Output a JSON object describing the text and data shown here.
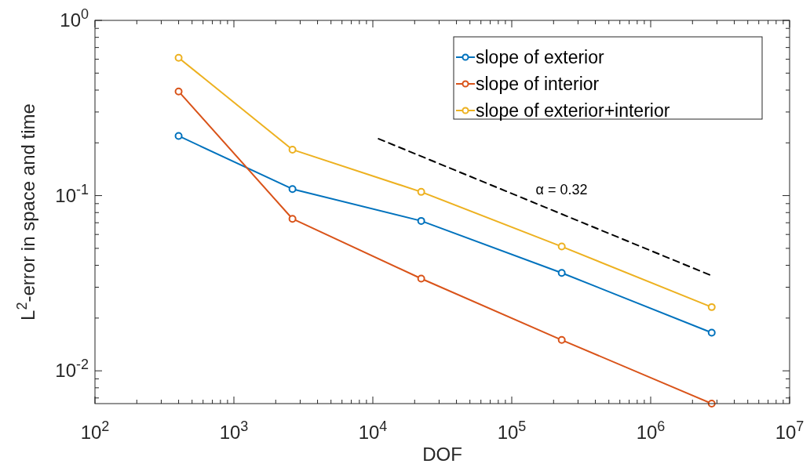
{
  "chart_data": {
    "type": "line",
    "xlabel": "DOF",
    "ylabel": "L$^{2}$-error in space and time",
    "log": "xy",
    "grid": false,
    "legend": "top right",
    "marker": "circle",
    "xlim": [
      100,
      10000000
    ],
    "ylim": [
      0.0065,
      1
    ],
    "xticks": [
      {
        "value": 100,
        "label": "10$^{2}$"
      },
      {
        "value": 1000,
        "label": "10$^{3}$"
      },
      {
        "value": 10000,
        "label": "10$^{4}$"
      },
      {
        "value": 100000,
        "label": "10$^{5}$"
      },
      {
        "value": 1000000,
        "label": "10$^{6}$"
      },
      {
        "value": 10000000,
        "label": "10$^{7}$"
      }
    ],
    "yticks": [
      {
        "value": 0.01,
        "label": "10$^{-2}$"
      },
      {
        "value": 0.1,
        "label": "10$^{-1}$"
      },
      {
        "value": 1,
        "label": "10$^{0}$"
      }
    ],
    "x": [
      400,
      2640,
      22300,
      229000,
      2750000
    ],
    "series": [
      {
        "name": "slope of exterior",
        "color": "#0072bd",
        "values": [
          0.219,
          0.109,
          0.0717,
          0.0362,
          0.0165
        ]
      },
      {
        "name": "slope of interior",
        "color": "#d95319",
        "values": [
          0.393,
          0.0737,
          0.0336,
          0.015,
          0.0065
        ]
      },
      {
        "name": "slope of exterior+interior",
        "color": "#edb120",
        "values": [
          0.612,
          0.183,
          0.105,
          0.0512,
          0.0231
        ]
      },
      {
        "type": "line",
        "color": "#000000",
        "line_style": "dashed",
        "marker": "none",
        "x": [
          11000,
          2750000
        ],
        "values": [
          0.211,
          0.0349
        ]
      }
    ],
    "annotations": [
      "α = 0.32"
    ]
  }
}
